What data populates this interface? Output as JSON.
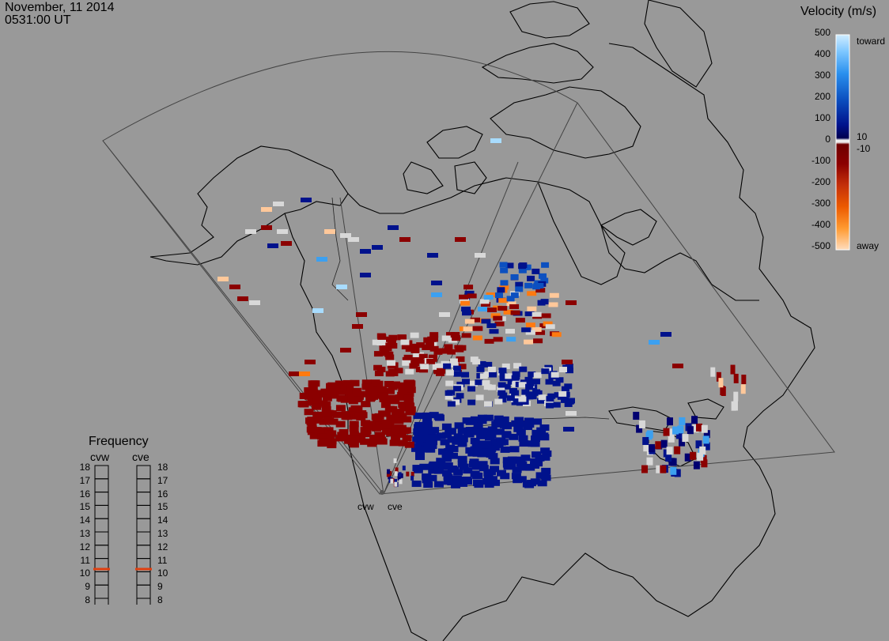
{
  "header": {
    "date": "November, 11 2014",
    "time": "0531:00 UT"
  },
  "velocity_scale": {
    "title": "Velocity (m/s)",
    "ticks": [
      "500",
      "400",
      "300",
      "200",
      "100",
      "0",
      "-100",
      "-200",
      "-300",
      "-400",
      "-500"
    ],
    "side_labels": {
      "top": "toward",
      "zero_pos": "10",
      "zero_neg": "-10",
      "bottom": "away"
    },
    "colors": [
      "#ffd9b8",
      "#ff9c3c",
      "#ff7a10",
      "#d94a10",
      "#b71c1c",
      "#8b0000",
      "#000060",
      "#00128c",
      "#0a3cb4",
      "#1e6ed8",
      "#3ca0f0",
      "#a8dcff"
    ]
  },
  "frequency_panel": {
    "title": "Frequency",
    "radars": [
      {
        "name": "cvw",
        "value_mhz": 10.7
      },
      {
        "name": "cve",
        "value_mhz": 10.7
      }
    ],
    "ticks": [
      "18",
      "17",
      "16",
      "15",
      "14",
      "13",
      "12",
      "11",
      "10",
      "9",
      "8"
    ]
  },
  "radar_labels": [
    "cvw",
    "cve"
  ]
}
